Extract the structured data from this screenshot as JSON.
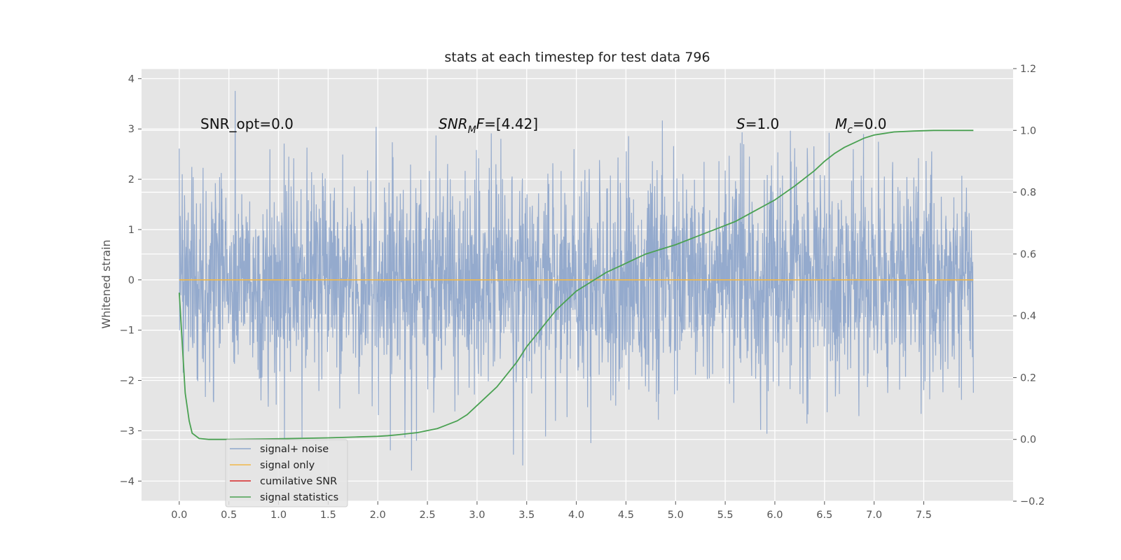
{
  "chart_data": {
    "type": "line",
    "title": "stats at each timestep for test data 796",
    "xlabel": "",
    "ylabel": "Whitened strain",
    "y2label": "",
    "xlim": [
      -0.38,
      8.4
    ],
    "ylim": [
      -4.4,
      4.2
    ],
    "y2lim": [
      -0.2,
      1.2
    ],
    "xticks": [
      "0.0",
      "0.5",
      "1.0",
      "1.5",
      "2.0",
      "2.5",
      "3.0",
      "3.5",
      "4.0",
      "4.5",
      "5.0",
      "5.5",
      "6.0",
      "6.5",
      "7.0",
      "7.5"
    ],
    "yticks": [
      "4",
      "3",
      "2",
      "1",
      "0",
      "−1",
      "−2",
      "−3",
      "−4"
    ],
    "y2ticks": [
      "1.2",
      "1.0",
      "0.8",
      "0.6",
      "0.4",
      "0.2",
      "0.0",
      "−0.2"
    ],
    "grid": true,
    "legend_position": "lower-left",
    "annotations": [
      {
        "text": "SNR_opt=0.0",
        "x": 0.2,
        "y": 3.0
      },
      {
        "text": "SNRMF=[4.42]",
        "x": 2.6,
        "y": 3.0
      },
      {
        "text": "S=1.0",
        "x": 5.6,
        "y": 3.0
      },
      {
        "text": "Mc=0.0",
        "x": 6.6,
        "y": 3.0
      }
    ],
    "series": [
      {
        "name": "signal+ noise",
        "axis": "left",
        "color": "#8fa6cb",
        "x_range": [
          0.0,
          8.0
        ],
        "typical_range": [
          -2.5,
          2.5
        ],
        "extremes": [
          -4.0,
          3.85
        ]
      },
      {
        "name": "signal only",
        "axis": "left",
        "color": "#f0b84a",
        "x": [
          0.0,
          8.0
        ],
        "values": [
          0.0,
          0.0
        ]
      },
      {
        "name": "cumilative SNR",
        "axis": "right",
        "color": "#d62728",
        "x": [],
        "values": []
      },
      {
        "name": "signal statistics",
        "axis": "right",
        "color": "#4aa152",
        "x": [
          0.0,
          0.06,
          0.1,
          0.13,
          0.2,
          0.3,
          0.5,
          1.0,
          1.5,
          1.8,
          2.0,
          2.1,
          2.2,
          2.4,
          2.6,
          2.8,
          2.9,
          3.0,
          3.1,
          3.2,
          3.3,
          3.4,
          3.5,
          3.6,
          3.7,
          3.8,
          3.9,
          4.0,
          4.1,
          4.2,
          4.3,
          4.4,
          4.5,
          4.6,
          4.7,
          4.8,
          4.9,
          5.0,
          5.2,
          5.4,
          5.6,
          5.8,
          6.0,
          6.2,
          6.4,
          6.5,
          6.6,
          6.7,
          6.8,
          6.9,
          7.0,
          7.1,
          7.2,
          7.4,
          7.6,
          7.8,
          8.0
        ],
        "values": [
          0.475,
          0.15,
          0.06,
          0.02,
          0.003,
          0.0,
          0.0,
          0.002,
          0.005,
          0.008,
          0.01,
          0.012,
          0.015,
          0.022,
          0.035,
          0.06,
          0.08,
          0.11,
          0.14,
          0.17,
          0.21,
          0.25,
          0.3,
          0.34,
          0.38,
          0.42,
          0.45,
          0.48,
          0.5,
          0.52,
          0.54,
          0.555,
          0.57,
          0.585,
          0.6,
          0.61,
          0.62,
          0.63,
          0.655,
          0.68,
          0.705,
          0.74,
          0.775,
          0.82,
          0.87,
          0.9,
          0.925,
          0.945,
          0.96,
          0.975,
          0.985,
          0.99,
          0.995,
          0.998,
          1.0,
          1.0,
          1.0
        ]
      }
    ]
  }
}
